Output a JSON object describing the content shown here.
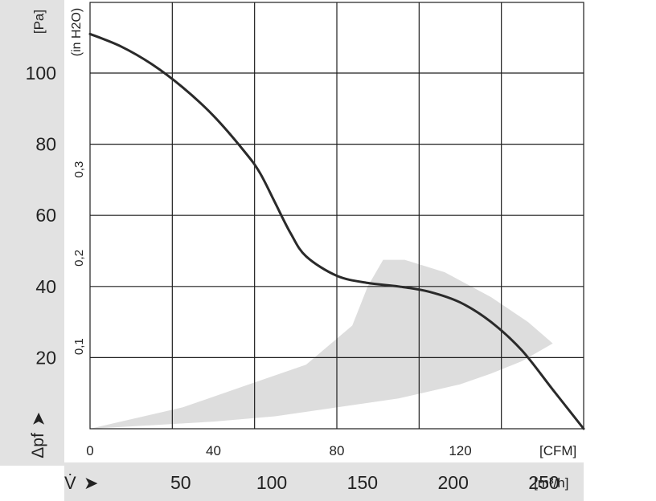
{
  "chart_data": {
    "type": "line",
    "title": "",
    "grid": true,
    "colors": {
      "curve": "#2a2a2a",
      "grid": "#1e1e1e",
      "operating_area": "#dddddd",
      "axis_band": "#e2e2e2"
    },
    "y_left": {
      "unit_label": "[Pa]",
      "quantity_label": "Δpf",
      "range": [
        0,
        110
      ],
      "ticks": [
        20,
        40,
        60,
        80,
        100
      ]
    },
    "y_right_inner": {
      "unit_label": "(in H2O)",
      "ticks": [
        {
          "label": "0,1",
          "value_pa": 24.9
        },
        {
          "label": "0,2",
          "value_pa": 49.8
        },
        {
          "label": "0,3",
          "value_pa": 74.7
        }
      ]
    },
    "x_top": {
      "unit_label": "[CFM]",
      "range": [
        0,
        160
      ],
      "ticks": [
        {
          "label": "0",
          "value": 0
        },
        {
          "label": "40",
          "value": 40
        },
        {
          "label": "80",
          "value": 80
        },
        {
          "label": "120",
          "value": 120
        }
      ]
    },
    "x_bottom": {
      "unit_label": "[m³/h]",
      "quantity_label": "V̇",
      "ticks": [
        {
          "label": "50",
          "cfm": 29.4
        },
        {
          "label": "100",
          "cfm": 58.9
        },
        {
          "label": "150",
          "cfm": 88.3
        },
        {
          "label": "200",
          "cfm": 117.7
        },
        {
          "label": "250",
          "cfm": 147.1
        }
      ]
    },
    "series": [
      {
        "x": [
          0,
          10,
          20,
          30,
          40,
          50,
          55,
          60,
          65,
          70,
          80,
          90,
          100,
          110,
          120,
          130,
          140,
          150,
          160
        ],
        "y": [
          111,
          107.5,
          102.5,
          96,
          88,
          78,
          72,
          63.5,
          55,
          48.5,
          43,
          41,
          40,
          38.5,
          35.5,
          30,
          22,
          11,
          0
        ]
      }
    ],
    "operating_area": {
      "upper_x": [
        0,
        30,
        50,
        70,
        85,
        90,
        95,
        102,
        115,
        130,
        142,
        150
      ],
      "upper_y": [
        0,
        6,
        12,
        18,
        29,
        40,
        47.5,
        47.5,
        44,
        37,
        30,
        24
      ],
      "lower_x": [
        150,
        140,
        130,
        120,
        110,
        100,
        80,
        60,
        40,
        20,
        0
      ],
      "lower_y": [
        24,
        19,
        15.5,
        12.5,
        10.5,
        8.5,
        6,
        3.5,
        2,
        1,
        0
      ]
    }
  }
}
